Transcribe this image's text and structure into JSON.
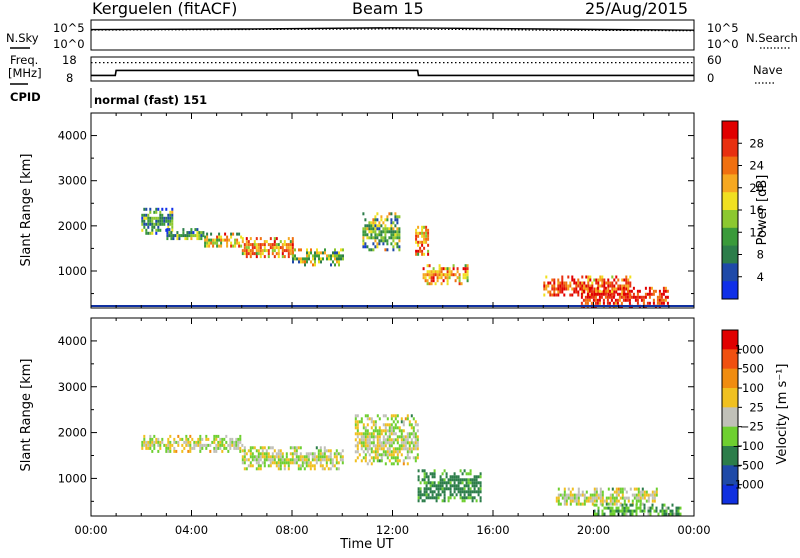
{
  "header": {
    "station": "Kerguelen (fitACF)",
    "beam": "Beam 15",
    "date": "25/Aug/2015"
  },
  "top_panels": {
    "nsky_label": "N.Sky",
    "nsearch_label": "N.Search",
    "freq_label_1": "Freq.",
    "freq_label_2": "[MHz]",
    "nave_label": "Nave",
    "cpid_label": "CPID",
    "cpid_text": "normal (fast) 151",
    "noise_ticks_left": [
      "10^5",
      "10^0"
    ],
    "noise_ticks_right": [
      "10^5",
      "10^0"
    ],
    "freq_ticks_left": [
      "18",
      "8"
    ],
    "freq_ticks_right": [
      "60",
      "0"
    ]
  },
  "colorbars": {
    "power": {
      "title": "Power [dB]",
      "ticks": [
        "28",
        "24",
        "20",
        "16",
        "12",
        "8",
        "4"
      ],
      "colors": [
        "#1030e8",
        "#1f4aa8",
        "#2c7d4a",
        "#3a9a3a",
        "#8cc830",
        "#f0e020",
        "#f6a820",
        "#f07010",
        "#e83010",
        "#e00000"
      ]
    },
    "velocity": {
      "title": "Velocity [m s⁻¹]",
      "ticks": [
        "1000",
        "500",
        "100",
        "25",
        "−25",
        "−100",
        "−500",
        "−1000"
      ],
      "colors": [
        "#1030e0",
        "#1f4aa8",
        "#2c7d4a",
        "#6ecf30",
        "#c0c0b8",
        "#f0c020",
        "#f08c10",
        "#f05010",
        "#e00000"
      ]
    }
  },
  "chart_data": [
    {
      "type": "line",
      "panel": "noise",
      "title": "",
      "series": [
        {
          "name": "N.Sky",
          "x": [
            "00:00",
            "06:00",
            "12:00",
            "18:00",
            "24:00"
          ],
          "values": [
            3.4,
            3.5,
            3.7,
            3.5,
            3.3
          ]
        },
        {
          "name": "N.Search",
          "x": [
            "00:00",
            "06:00",
            "12:00",
            "18:00",
            "24:00"
          ],
          "values": [
            3.3,
            3.4,
            3.5,
            3.3,
            3.2
          ]
        }
      ]
    },
    {
      "type": "line",
      "panel": "frequency",
      "series": [
        {
          "name": "Freq. [MHz]",
          "x": [
            "00:00",
            "00:58",
            "01:00",
            "13:00",
            "13:02",
            "24:00"
          ],
          "values": [
            10.3,
            10.3,
            12.4,
            12.4,
            10.3,
            10.3
          ]
        },
        {
          "name": "Nave",
          "x": [
            "00:00",
            "24:00"
          ],
          "values": [
            46,
            46
          ]
        }
      ]
    },
    {
      "type": "heatmap",
      "panel": "power",
      "xlabel": "",
      "ylabel": "Slant Range [km]",
      "xlim": [
        0,
        24
      ],
      "ylim": [
        180,
        4500
      ],
      "colorbar_range": [
        0,
        32
      ],
      "yticks": [
        1000,
        2000,
        3000,
        4000
      ],
      "features": [
        {
          "t0": 2.0,
          "t1": 3.2,
          "r0": 1850,
          "r1": 2400,
          "power": 9
        },
        {
          "t0": 3.0,
          "t1": 4.5,
          "r0": 1700,
          "r1": 1950,
          "power": 11
        },
        {
          "t0": 4.5,
          "t1": 6.0,
          "r0": 1550,
          "r1": 1850,
          "power": 18
        },
        {
          "t0": 6.0,
          "t1": 8.0,
          "r0": 1300,
          "r1": 1750,
          "power": 21
        },
        {
          "t0": 8.0,
          "t1": 10.0,
          "r0": 1150,
          "r1": 1500,
          "power": 14
        },
        {
          "t0": 10.8,
          "t1": 12.3,
          "r0": 1500,
          "r1": 2300,
          "power": 13
        },
        {
          "t0": 12.9,
          "t1": 13.4,
          "r0": 1400,
          "r1": 2000,
          "power": 23
        },
        {
          "t0": 13.2,
          "t1": 15.0,
          "r0": 750,
          "r1": 1150,
          "power": 22
        },
        {
          "t0": 18.0,
          "t1": 21.5,
          "r0": 450,
          "r1": 900,
          "power": 26
        },
        {
          "t0": 19.5,
          "t1": 23.0,
          "r0": 250,
          "r1": 650,
          "power": 29
        }
      ]
    },
    {
      "type": "heatmap",
      "panel": "velocity",
      "xlabel": "Time UT",
      "ylabel": "Slant Range [km]",
      "xlim": [
        0,
        24
      ],
      "ylim": [
        180,
        4500
      ],
      "colorbar_range": [
        -1000,
        1000
      ],
      "xticks": [
        "00:00",
        "04:00",
        "08:00",
        "12:00",
        "16:00",
        "20:00",
        "00:00"
      ],
      "yticks": [
        1000,
        2000,
        3000,
        4000
      ],
      "features": [
        {
          "t0": 2.0,
          "t1": 6.0,
          "r0": 1600,
          "r1": 1950,
          "velocity": 0
        },
        {
          "t0": 6.0,
          "t1": 10.0,
          "r0": 1200,
          "r1": 1700,
          "velocity": 0
        },
        {
          "t0": 10.5,
          "t1": 13.0,
          "r0": 1300,
          "r1": 2400,
          "velocity": 0
        },
        {
          "t0": 13.0,
          "t1": 15.5,
          "r0": 500,
          "r1": 1200,
          "velocity": 150
        },
        {
          "t0": 18.5,
          "t1": 22.5,
          "r0": 450,
          "r1": 800,
          "velocity": 0
        },
        {
          "t0": 20.0,
          "t1": 23.5,
          "r0": 200,
          "r1": 450,
          "velocity": 100
        }
      ]
    }
  ]
}
